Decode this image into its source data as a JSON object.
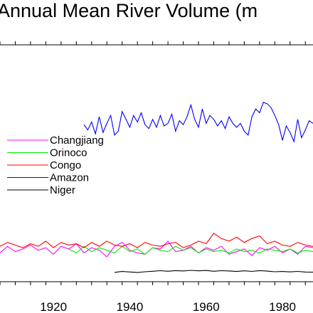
{
  "chart_data": {
    "type": "line",
    "title": "Annual Mean River Volume (m",
    "xlabel": "",
    "ylabel": "",
    "xlim": [
      1906,
      1988
    ],
    "x_tick_labels": [
      "1920",
      "1940",
      "1960",
      "1980"
    ],
    "legend_position": "left-middle",
    "series": [
      {
        "name": "Changjiang",
        "color": "#ff00ff",
        "x": [
          1906,
          1908,
          1910,
          1912,
          1914,
          1916,
          1918,
          1920,
          1922,
          1924,
          1926,
          1928,
          1930,
          1932,
          1934,
          1936,
          1938,
          1940,
          1942,
          1944,
          1946,
          1948,
          1950,
          1952,
          1954,
          1956,
          1958,
          1960,
          1962,
          1964,
          1966,
          1968,
          1970,
          1972,
          1974,
          1976,
          1978,
          1980,
          1982,
          1984,
          1986,
          1988
        ],
        "y": [
          7.4,
          7.9,
          7.5,
          7.7,
          8.0,
          7.6,
          7.8,
          7.3,
          7.9,
          7.7,
          8.1,
          7.4,
          7.8,
          7.6,
          7.1,
          7.9,
          8.2,
          7.6,
          7.4,
          7.3,
          7.8,
          7.7,
          8.3,
          7.5,
          7.6,
          7.9,
          7.4,
          7.8,
          7.6,
          7.9,
          7.3,
          7.5,
          7.7,
          7.2,
          7.8,
          7.6,
          7.9,
          7.4,
          7.7,
          7.3,
          7.9,
          7.8
        ]
      },
      {
        "name": "Orinoco",
        "color": "#00ee00",
        "x": [
          1924,
          1926,
          1928,
          1930,
          1932,
          1934,
          1936,
          1938,
          1940,
          1942,
          1944,
          1946,
          1948,
          1950,
          1952,
          1954,
          1956,
          1958,
          1960,
          1962,
          1964,
          1966,
          1968,
          1970,
          1972,
          1974,
          1976,
          1978,
          1980,
          1982,
          1984,
          1986,
          1988
        ],
        "y": [
          7.7,
          7.4,
          7.9,
          7.5,
          7.8,
          7.6,
          7.4,
          7.9,
          7.5,
          7.7,
          7.3,
          7.8,
          7.6,
          7.5,
          7.9,
          7.6,
          7.8,
          7.4,
          7.7,
          7.5,
          7.6,
          7.4,
          7.7,
          7.5,
          7.6,
          7.4,
          7.7,
          7.6,
          7.5,
          7.7,
          7.4,
          7.6,
          7.5
        ]
      },
      {
        "name": "Congo",
        "color": "#ff0000",
        "x": [
          1906,
          1908,
          1910,
          1912,
          1914,
          1916,
          1918,
          1920,
          1922,
          1924,
          1926,
          1928,
          1930,
          1932,
          1934,
          1936,
          1938,
          1940,
          1942,
          1944,
          1946,
          1948,
          1950,
          1952,
          1954,
          1956,
          1958,
          1960,
          1962,
          1964,
          1966,
          1968,
          1970,
          1972,
          1974,
          1976,
          1978,
          1980,
          1982,
          1984,
          1986,
          1988
        ],
        "y": [
          7.9,
          8.2,
          8.0,
          7.8,
          8.1,
          7.9,
          8.3,
          7.8,
          8.2,
          8.0,
          8.1,
          7.8,
          8.2,
          7.9,
          8.3,
          8.0,
          7.9,
          8.1,
          7.8,
          8.2,
          8.0,
          7.9,
          8.1,
          8.2,
          7.8,
          8.0,
          8.3,
          8.1,
          8.9,
          8.5,
          8.3,
          8.6,
          8.2,
          8.5,
          8.7,
          8.1,
          8.3,
          8.0,
          7.9,
          8.2,
          8.0,
          7.9
        ]
      },
      {
        "name": "Amazon",
        "color": "#0000ff",
        "x": [
          1928,
          1929,
          1930,
          1931,
          1932,
          1933,
          1934,
          1935,
          1936,
          1937,
          1938,
          1939,
          1940,
          1941,
          1942,
          1943,
          1944,
          1945,
          1946,
          1947,
          1948,
          1949,
          1950,
          1951,
          1952,
          1953,
          1954,
          1955,
          1956,
          1957,
          1958,
          1959,
          1960,
          1961,
          1962,
          1963,
          1964,
          1965,
          1966,
          1967,
          1968,
          1969,
          1970,
          1971,
          1972,
          1973,
          1974,
          1975,
          1976,
          1977,
          1978,
          1979,
          1980,
          1981,
          1982,
          1983,
          1984,
          1985,
          1986,
          1987,
          1988
        ],
        "y": [
          17.2,
          16.8,
          17.4,
          16.5,
          17.8,
          16.6,
          17.3,
          17.9,
          16.4,
          16.7,
          18.2,
          17.6,
          17.0,
          17.9,
          17.4,
          18.1,
          17.2,
          16.9,
          17.6,
          17.0,
          17.9,
          17.1,
          17.3,
          18.0,
          16.7,
          17.5,
          17.2,
          17.8,
          18.7,
          17.6,
          17.0,
          18.4,
          17.3,
          17.9,
          17.6,
          17.1,
          17.5,
          16.9,
          17.8,
          17.3,
          17.0,
          17.3,
          16.7,
          16.4,
          17.8,
          18.4,
          18.1,
          18.9,
          18.8,
          18.5,
          17.9,
          17.2,
          16.0,
          17.1,
          16.6,
          15.9,
          17.6,
          16.2,
          16.8,
          17.5,
          17.3
        ]
      },
      {
        "name": "Niger",
        "color": "#000000",
        "x": [
          1936,
          1937,
          1938,
          1942,
          1944,
          1946,
          1948,
          1950,
          1952,
          1954,
          1956,
          1958,
          1960,
          1962,
          1964,
          1966,
          1968,
          1970,
          1972,
          1974,
          1976,
          1978,
          1980,
          1982,
          1984,
          1986,
          1988
        ],
        "y": [
          5.9,
          5.95,
          5.98,
          5.9,
          5.96,
          6.0,
          6.04,
          6.0,
          6.05,
          6.02,
          6.07,
          6.03,
          6.06,
          6.0,
          6.04,
          6.02,
          5.98,
          6.03,
          5.99,
          6.05,
          6.01,
          5.96,
          5.98,
          5.95,
          5.99,
          5.94,
          5.93
        ]
      }
    ]
  }
}
